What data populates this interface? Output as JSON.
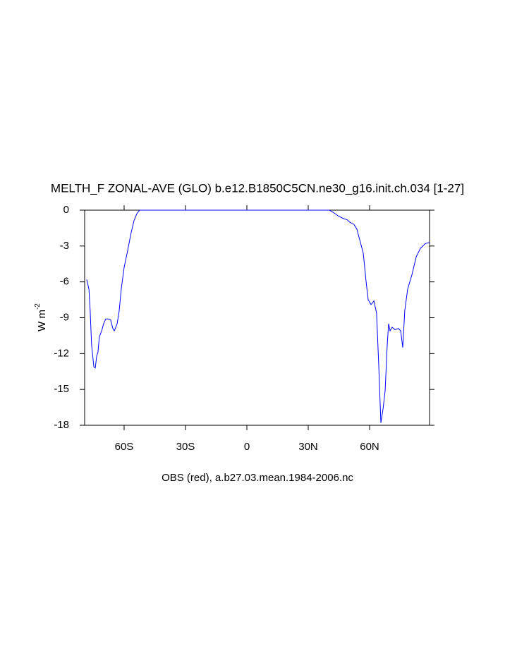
{
  "chart_data": {
    "type": "line",
    "title": "MELTH_F ZONAL-AVE (GLO) b.e12.B1850C5CN.ne30_g16.init.ch.034 [1-27]",
    "xlabel": "OBS (red), a.b27.03.mean.1984-2006.nc",
    "ylabel": "W m",
    "ylabel_superscript": "-2",
    "xlim": [
      -79.3,
      89.3
    ],
    "ylim": [
      -18,
      0
    ],
    "xticks": [
      {
        "value": -60,
        "label": "60S"
      },
      {
        "value": -30,
        "label": "30S"
      },
      0,
      {
        "value": 30,
        "label": "30N"
      },
      {
        "value": 60,
        "label": "60N"
      }
    ],
    "yticks": [
      0,
      -3,
      -6,
      -9,
      -12,
      -15,
      -18
    ],
    "x": [
      -78.3,
      -77.2,
      -76.6,
      -75.9,
      -74.8,
      -74.1,
      -73.4,
      -72.8,
      -72.1,
      -71.0,
      -70.0,
      -69.0,
      -67.6,
      -66.6,
      -65.5,
      -64.8,
      -63.4,
      -62.4,
      -61.4,
      -60.0,
      -58.3,
      -56.6,
      -55.2,
      -53.8,
      -52.4,
      40.3,
      42.4,
      44.8,
      47.2,
      49.0,
      50.3,
      52.4,
      53.8,
      55.2,
      56.9,
      58.3,
      59.3,
      60.7,
      62.1,
      63.4,
      64.5,
      65.5,
      66.6,
      67.6,
      68.6,
      69.3,
      70.0,
      71.0,
      72.4,
      74.1,
      75.2,
      76.2,
      77.2,
      78.6,
      80.7,
      82.8,
      84.8,
      87.2,
      89.3
    ],
    "series": [
      {
        "name": "MELTH_F",
        "color": "#0000ff",
        "values": [
          -5.8,
          -6.6,
          -8.4,
          -11.3,
          -13.1,
          -13.2,
          -12.2,
          -11.9,
          -10.6,
          -10.1,
          -9.5,
          -9.1,
          -9.1,
          -9.2,
          -9.9,
          -10.1,
          -9.5,
          -8.4,
          -6.6,
          -4.8,
          -3.4,
          -1.9,
          -0.9,
          -0.3,
          0,
          0,
          -0.2,
          -0.5,
          -0.7,
          -0.8,
          -1.0,
          -1.2,
          -1.6,
          -2.5,
          -3.6,
          -6.0,
          -7.5,
          -7.9,
          -7.6,
          -8.6,
          -13.1,
          -17.8,
          -16.6,
          -15.1,
          -11.3,
          -9.5,
          -10.1,
          -9.8,
          -10.0,
          -9.9,
          -10.1,
          -11.5,
          -8.4,
          -6.6,
          -5.4,
          -3.9,
          -3.2,
          -2.8,
          -2.7
        ]
      }
    ]
  }
}
